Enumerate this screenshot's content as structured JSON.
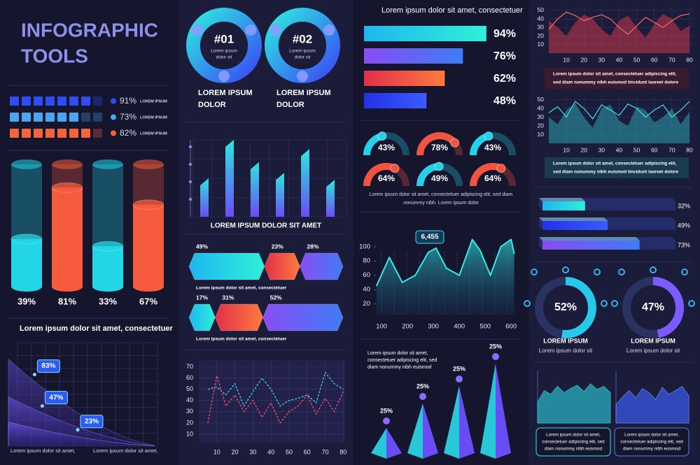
{
  "title": [
    "INFOGRAPHIC",
    "TOOLS"
  ],
  "square_rows": {
    "values": [
      91,
      73,
      82
    ],
    "value_labels": [
      "91%",
      "73%",
      "82%"
    ],
    "labels": [
      "LOREM IPSUM",
      "LOREM IPSUM",
      "LOREM IPSUM"
    ],
    "colors": [
      "#2f4cf5",
      "#4aa6f0",
      "#f2653c"
    ]
  },
  "cylinders": {
    "values": [
      39,
      81,
      33,
      67
    ],
    "value_labels": [
      "39%",
      "81%",
      "33%",
      "67%"
    ],
    "colors": [
      "#23d6e6",
      "#f55b3c",
      "#23d6e6",
      "#f55b3c"
    ],
    "ylim": [
      0,
      100
    ]
  },
  "falling_areas": {
    "title": "Lorem ipsum dolor sit amet, consectetuer",
    "values": [
      83,
      47,
      23
    ],
    "value_labels": [
      "83%",
      "47%",
      "23%"
    ],
    "notes": [
      "Lorem ipsum dolor sit amet,",
      "Lorem ipsum dolor sit amet,"
    ],
    "ylim": [
      0,
      100
    ]
  },
  "rings": [
    {
      "label": "#01",
      "text": [
        "Lorem ipsum",
        "dolor sit"
      ],
      "caption": [
        "LOREM IPSUM",
        "DOLOR"
      ]
    },
    {
      "label": "#02",
      "text": [
        "Lorem ipsum",
        "dolor sit"
      ],
      "caption": [
        "LOREM IPSUM",
        "DOLOR"
      ]
    }
  ],
  "bar_chart": {
    "title": "LOREM IPSUM DOLOR SIT AMET",
    "values": [
      50,
      100,
      71,
      57,
      88,
      48
    ],
    "ylim": [
      0,
      100
    ]
  },
  "segment_bars": [
    {
      "values": [
        49,
        23,
        28
      ],
      "value_labels": [
        "49%",
        "23%",
        "28%"
      ],
      "text": "Lorem ipsum dolor sit amet, consectetuer"
    },
    {
      "values": [
        17,
        31,
        52
      ],
      "value_labels": [
        "17%",
        "31%",
        "52%"
      ],
      "text": "Lorem ipsum dolor sit amet, consectetuer"
    }
  ],
  "line_chart": {
    "type": "line",
    "x": [
      5,
      10,
      15,
      20,
      25,
      30,
      35,
      40,
      45,
      50,
      55,
      60,
      65,
      70,
      75,
      80
    ],
    "series": [
      {
        "color": "#3ad6e6",
        "values": [
          50,
          52,
          45,
          55,
          35,
          48,
          60,
          50,
          35,
          40,
          42,
          45,
          38,
          65,
          55,
          50
        ]
      },
      {
        "color": "#f0506a",
        "values": [
          20,
          62,
          35,
          45,
          30,
          40,
          25,
          38,
          20,
          30,
          35,
          45,
          28,
          42,
          30,
          48
        ]
      }
    ],
    "xlim": [
      0,
      81
    ],
    "ylim": [
      0,
      76
    ],
    "xticks": [
      10,
      20,
      30,
      40,
      50,
      60,
      70,
      80
    ],
    "yticks": [
      10,
      20,
      30,
      40,
      50,
      60,
      70
    ]
  },
  "hbars": {
    "title": "Lorem ipsum dolor sit amet, consectetuer",
    "values": [
      94,
      76,
      62,
      48
    ],
    "value_labels": [
      "94%",
      "76%",
      "62%",
      "48%"
    ],
    "xlim": [
      0,
      100
    ]
  },
  "gauges": {
    "values": [
      43,
      78,
      43,
      64,
      49,
      64
    ],
    "value_labels": [
      "43%",
      "78%",
      "43%",
      "64%",
      "49%",
      "64%"
    ],
    "colors": [
      "#25d0e8",
      "#f2553f",
      "#25d0e8",
      "#f2553f",
      "#25d0e8",
      "#f2553f"
    ],
    "text": [
      "Lorem ipsum dolor sit amet, consectetuer adipiscing elit, sed diam",
      "nonummy nibh. Lorem ipsum dolor"
    ]
  },
  "wave_chart": {
    "type": "area",
    "x": [
      80,
      130,
      180,
      230,
      280,
      310,
      350,
      400,
      450,
      480,
      520,
      560,
      600,
      612
    ],
    "values": [
      45,
      85,
      50,
      60,
      92,
      98,
      70,
      60,
      110,
      95,
      60,
      100,
      110,
      90
    ],
    "xlim": [
      78,
      613
    ],
    "ylim": [
      5,
      132
    ],
    "xticks": [
      100,
      200,
      300,
      400,
      500,
      600
    ],
    "yticks": [
      20,
      40,
      60,
      80,
      100
    ],
    "callout": "6,455"
  },
  "pyramids": {
    "text": [
      "Lorem ipsum dolor sit amet,",
      "consectetuer adipiscing elit, sed",
      "diam nonummy nibh euismod"
    ],
    "values": [
      25,
      25,
      25,
      25
    ],
    "value_labels": [
      "25%",
      "25%",
      "25%",
      "25%"
    ]
  },
  "red_chart": {
    "x": [
      0,
      5,
      10,
      15,
      20,
      25,
      30,
      35,
      40,
      45,
      50,
      55,
      60,
      65,
      70,
      75,
      80
    ],
    "line": [
      28,
      40,
      48,
      44,
      38,
      42,
      45,
      40,
      30,
      22,
      32,
      42,
      36,
      30,
      38,
      44,
      46
    ],
    "area": [
      38,
      30,
      20,
      36,
      45,
      40,
      28,
      20,
      38,
      44,
      30,
      18,
      34,
      46,
      40,
      26,
      32
    ],
    "xlim": [
      0,
      82
    ],
    "ylim": [
      0,
      54
    ],
    "xticks": [
      10,
      20,
      30,
      40,
      50,
      60,
      70,
      80
    ],
    "yticks": [
      10,
      20,
      30,
      40,
      50
    ],
    "text": [
      "Lorem ipsum dolor sit amet, consectetuer adipiscing elit,",
      "sed diam nonummy nibh euismod tincidunt laoreet dolore"
    ]
  },
  "teal_chart": {
    "x": [
      0,
      5,
      10,
      15,
      20,
      25,
      30,
      35,
      40,
      45,
      50,
      55,
      60,
      65,
      70,
      75,
      80
    ],
    "line": [
      35,
      42,
      30,
      48,
      40,
      28,
      44,
      38,
      32,
      45,
      40,
      30,
      38,
      44,
      30,
      38,
      48
    ],
    "area": [
      30,
      22,
      38,
      46,
      30,
      18,
      40,
      44,
      26,
      20,
      42,
      38,
      24,
      30,
      40,
      22,
      36
    ],
    "xlim": [
      0,
      82
    ],
    "ylim": [
      0,
      52
    ],
    "xticks": [
      10,
      20,
      30,
      40,
      50,
      60,
      70,
      80
    ],
    "yticks": [
      10,
      20,
      30,
      40,
      50
    ],
    "text": [
      "Lorem ipsum dolor sit amet, consectetuer adipiscing elit,",
      "sed diam nonummy nibh euismod tincidunt laoreet dolore"
    ]
  },
  "bars_3d": {
    "values": [
      32,
      49,
      73
    ],
    "value_labels": [
      "32%",
      "49%",
      "73%"
    ],
    "xlim": [
      0,
      100
    ]
  },
  "donuts": [
    {
      "value": 52,
      "label": "52%",
      "title": "LOREM IPSUM",
      "text": "Lorem ipsum dolor sit"
    },
    {
      "value": 47,
      "label": "47%",
      "title": "LOREM IPSUM",
      "text": "Lorem ipsum dolor sit"
    }
  ],
  "mini_areas": [
    {
      "values": [
        40,
        62,
        55,
        70,
        58,
        66,
        72,
        60,
        75,
        64,
        70,
        58
      ],
      "ylim": [
        0,
        100
      ],
      "text": [
        "Lorem ipsum dolor sit amet,",
        "consectetuer adipiscing elit, sed",
        "diam nonummy nibh euismod"
      ]
    },
    {
      "values": [
        35,
        50,
        62,
        48,
        66,
        58,
        45,
        68,
        55,
        62,
        70,
        52
      ],
      "ylim": [
        0,
        100
      ],
      "text": [
        "Lorem ipsum dolor sit amet,",
        "consectetuer adipiscing elit, sed",
        "diam nonummy nibh euismod"
      ]
    }
  ]
}
